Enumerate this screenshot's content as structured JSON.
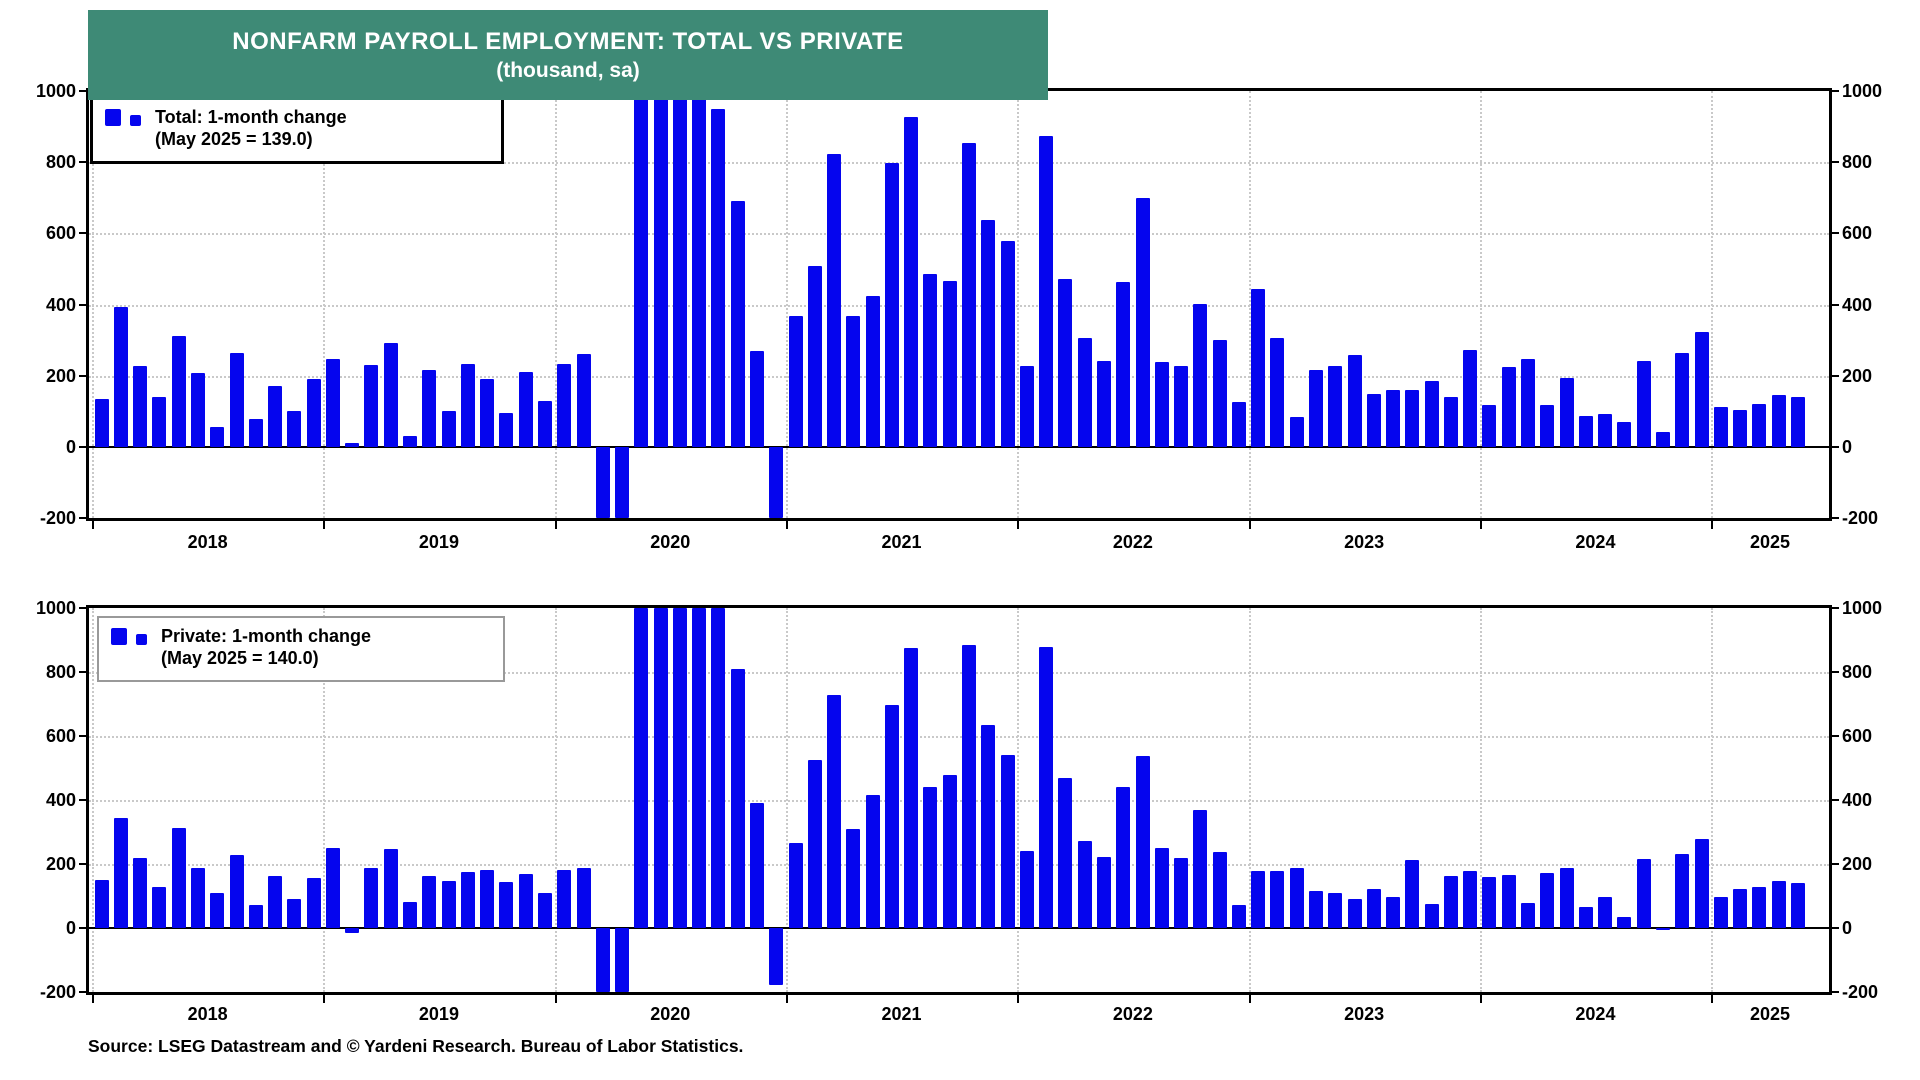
{
  "title": {
    "line1": "NONFARM PAYROLL EMPLOYMENT: TOTAL VS PRIVATE",
    "line2": "(thousand, sa)"
  },
  "source_line": "Source: LSEG Datastream and © Yardeni Research. Bureau of Labor Statistics.",
  "colors": {
    "bar": "#0505ee",
    "banner": "#3e8a76",
    "grid": "#c9c9c9",
    "frame": "#000000",
    "legend2_border": "#999999"
  },
  "axes": {
    "ylim": [
      -200,
      1000
    ],
    "y_ticks": [
      1000,
      800,
      600,
      400,
      200,
      0,
      -200
    ],
    "x_year_labels": [
      "2018",
      "2019",
      "2020",
      "2021",
      "2022",
      "2023",
      "2024",
      "2025"
    ],
    "grid": "dotted",
    "note": "values beyond ylim are clipped at panel edges"
  },
  "chart_data": [
    {
      "type": "bar",
      "panel": "top",
      "legend_line1": "Total: 1-month change",
      "legend_line2": "(May 2025 = 139.0)",
      "ylabel": "thousand, sa",
      "categories": [
        "2018-01",
        "2018-02",
        "2018-03",
        "2018-04",
        "2018-05",
        "2018-06",
        "2018-07",
        "2018-08",
        "2018-09",
        "2018-10",
        "2018-11",
        "2018-12",
        "2019-01",
        "2019-02",
        "2019-03",
        "2019-04",
        "2019-05",
        "2019-06",
        "2019-07",
        "2019-08",
        "2019-09",
        "2019-10",
        "2019-11",
        "2019-12",
        "2020-01",
        "2020-02",
        "2020-03",
        "2020-04",
        "2020-05",
        "2020-06",
        "2020-07",
        "2020-08",
        "2020-09",
        "2020-10",
        "2020-11",
        "2020-12",
        "2021-01",
        "2021-02",
        "2021-03",
        "2021-04",
        "2021-05",
        "2021-06",
        "2021-07",
        "2021-08",
        "2021-09",
        "2021-10",
        "2021-11",
        "2021-12",
        "2022-01",
        "2022-02",
        "2022-03",
        "2022-04",
        "2022-05",
        "2022-06",
        "2022-07",
        "2022-08",
        "2022-09",
        "2022-10",
        "2022-11",
        "2022-12",
        "2023-01",
        "2023-02",
        "2023-03",
        "2023-04",
        "2023-05",
        "2023-06",
        "2023-07",
        "2023-08",
        "2023-09",
        "2023-10",
        "2023-11",
        "2023-12",
        "2024-01",
        "2024-02",
        "2024-03",
        "2024-04",
        "2024-05",
        "2024-06",
        "2024-07",
        "2024-08",
        "2024-09",
        "2024-10",
        "2024-11",
        "2024-12",
        "2025-01",
        "2025-02",
        "2025-03",
        "2025-04",
        "2025-05"
      ],
      "values": [
        135,
        394,
        226,
        141,
        312,
        208,
        57,
        264,
        79,
        170,
        100,
        190,
        246,
        11,
        231,
        293,
        30,
        216,
        100,
        234,
        191,
        95,
        210,
        130,
        233,
        262,
        -1400,
        -20500,
        2800,
        4800,
        1450,
        1600,
        950,
        690,
        270,
        -243,
        367,
        509,
        823,
        368,
        425,
        797,
        928,
        486,
        467,
        855,
        638,
        578,
        226,
        873,
        471,
        306,
        241,
        464,
        699,
        238,
        228,
        401,
        300,
        127,
        443,
        306,
        85,
        216,
        228,
        258,
        149,
        161,
        161,
        185,
        141,
        271,
        118,
        223,
        247,
        118,
        194,
        87,
        91,
        70,
        242,
        43,
        263,
        322,
        113,
        103,
        120,
        146,
        139
      ]
    },
    {
      "type": "bar",
      "panel": "bottom",
      "legend_line1": "Private: 1-month change",
      "legend_line2": "(May 2025 = 140.0)",
      "ylabel": "thousand, sa",
      "categories": [
        "2018-01",
        "2018-02",
        "2018-03",
        "2018-04",
        "2018-05",
        "2018-06",
        "2018-07",
        "2018-08",
        "2018-09",
        "2018-10",
        "2018-11",
        "2018-12",
        "2019-01",
        "2019-02",
        "2019-03",
        "2019-04",
        "2019-05",
        "2019-06",
        "2019-07",
        "2019-08",
        "2019-09",
        "2019-10",
        "2019-11",
        "2019-12",
        "2020-01",
        "2020-02",
        "2020-03",
        "2020-04",
        "2020-05",
        "2020-06",
        "2020-07",
        "2020-08",
        "2020-09",
        "2020-10",
        "2020-11",
        "2020-12",
        "2021-01",
        "2021-02",
        "2021-03",
        "2021-04",
        "2021-05",
        "2021-06",
        "2021-07",
        "2021-08",
        "2021-09",
        "2021-10",
        "2021-11",
        "2021-12",
        "2022-01",
        "2022-02",
        "2022-03",
        "2022-04",
        "2022-05",
        "2022-06",
        "2022-07",
        "2022-08",
        "2022-09",
        "2022-10",
        "2022-11",
        "2022-12",
        "2023-01",
        "2023-02",
        "2023-03",
        "2023-04",
        "2023-05",
        "2023-06",
        "2023-07",
        "2023-08",
        "2023-09",
        "2023-10",
        "2023-11",
        "2023-12",
        "2024-01",
        "2024-02",
        "2024-03",
        "2024-04",
        "2024-05",
        "2024-06",
        "2024-07",
        "2024-08",
        "2024-09",
        "2024-10",
        "2024-11",
        "2024-12",
        "2025-01",
        "2025-02",
        "2025-03",
        "2025-04",
        "2025-05"
      ],
      "values": [
        149,
        345,
        219,
        128,
        311,
        186,
        110,
        229,
        73,
        162,
        92,
        156,
        250,
        -15,
        186,
        246,
        80,
        162,
        147,
        174,
        180,
        145,
        170,
        110,
        181,
        187,
        -1500,
        -19700,
        2900,
        4700,
        1400,
        1300,
        1050,
        810,
        390,
        -178,
        267,
        524,
        727,
        310,
        417,
        697,
        875,
        442,
        479,
        885,
        635,
        540,
        242,
        878,
        468,
        271,
        221,
        440,
        539,
        249,
        218,
        369,
        236,
        71,
        179,
        179,
        186,
        115,
        110,
        90,
        121,
        98,
        211,
        74,
        161,
        177,
        159,
        166,
        77,
        173,
        189,
        66,
        97,
        35,
        215,
        -5,
        231,
        277,
        97,
        123,
        128,
        147,
        140
      ]
    }
  ]
}
